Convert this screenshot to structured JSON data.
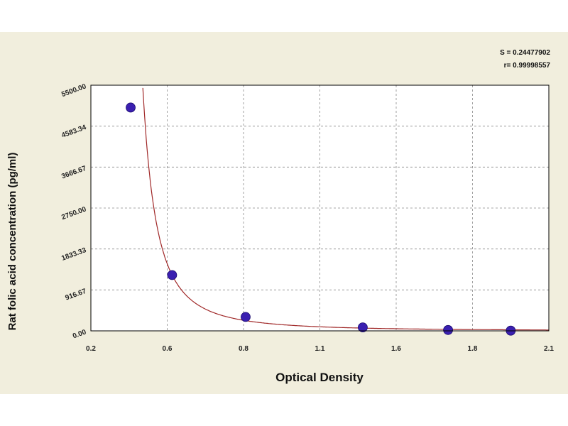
{
  "chart_data": {
    "type": "scatter",
    "xlabel": "Optical Density",
    "ylabel": "Rat folic acid concentration (pg/ml)",
    "x_ticks": [
      "0.2",
      "0.6",
      "0.8",
      "1.1",
      "1.6",
      "1.8",
      "2.1"
    ],
    "y_ticks": [
      "0.00",
      "916.67",
      "1833.33",
      "2750.00",
      "3666.67",
      "4583.34",
      "5500.00"
    ],
    "xlim": [
      0.2,
      2.1
    ],
    "ylim": [
      0,
      5500
    ],
    "grid": true,
    "points": [
      {
        "x": 0.365,
        "y": 5000
      },
      {
        "x": 0.537,
        "y": 1250
      },
      {
        "x": 0.842,
        "y": 312
      },
      {
        "x": 1.328,
        "y": 78
      },
      {
        "x": 1.682,
        "y": 19
      },
      {
        "x": 1.942,
        "y": 5
      }
    ],
    "fit_curve": {
      "a": 2800,
      "b": 1.8,
      "x0": 0.36
    },
    "stats": {
      "s_line": "S = 0.24477902",
      "r_line": "r= 0.99998557"
    },
    "colors": {
      "background": "#f1eedd",
      "plot": "#ffffff",
      "curve": "#a02828",
      "marker": "#3a1fb0",
      "grid": "#8a8a8a"
    }
  }
}
